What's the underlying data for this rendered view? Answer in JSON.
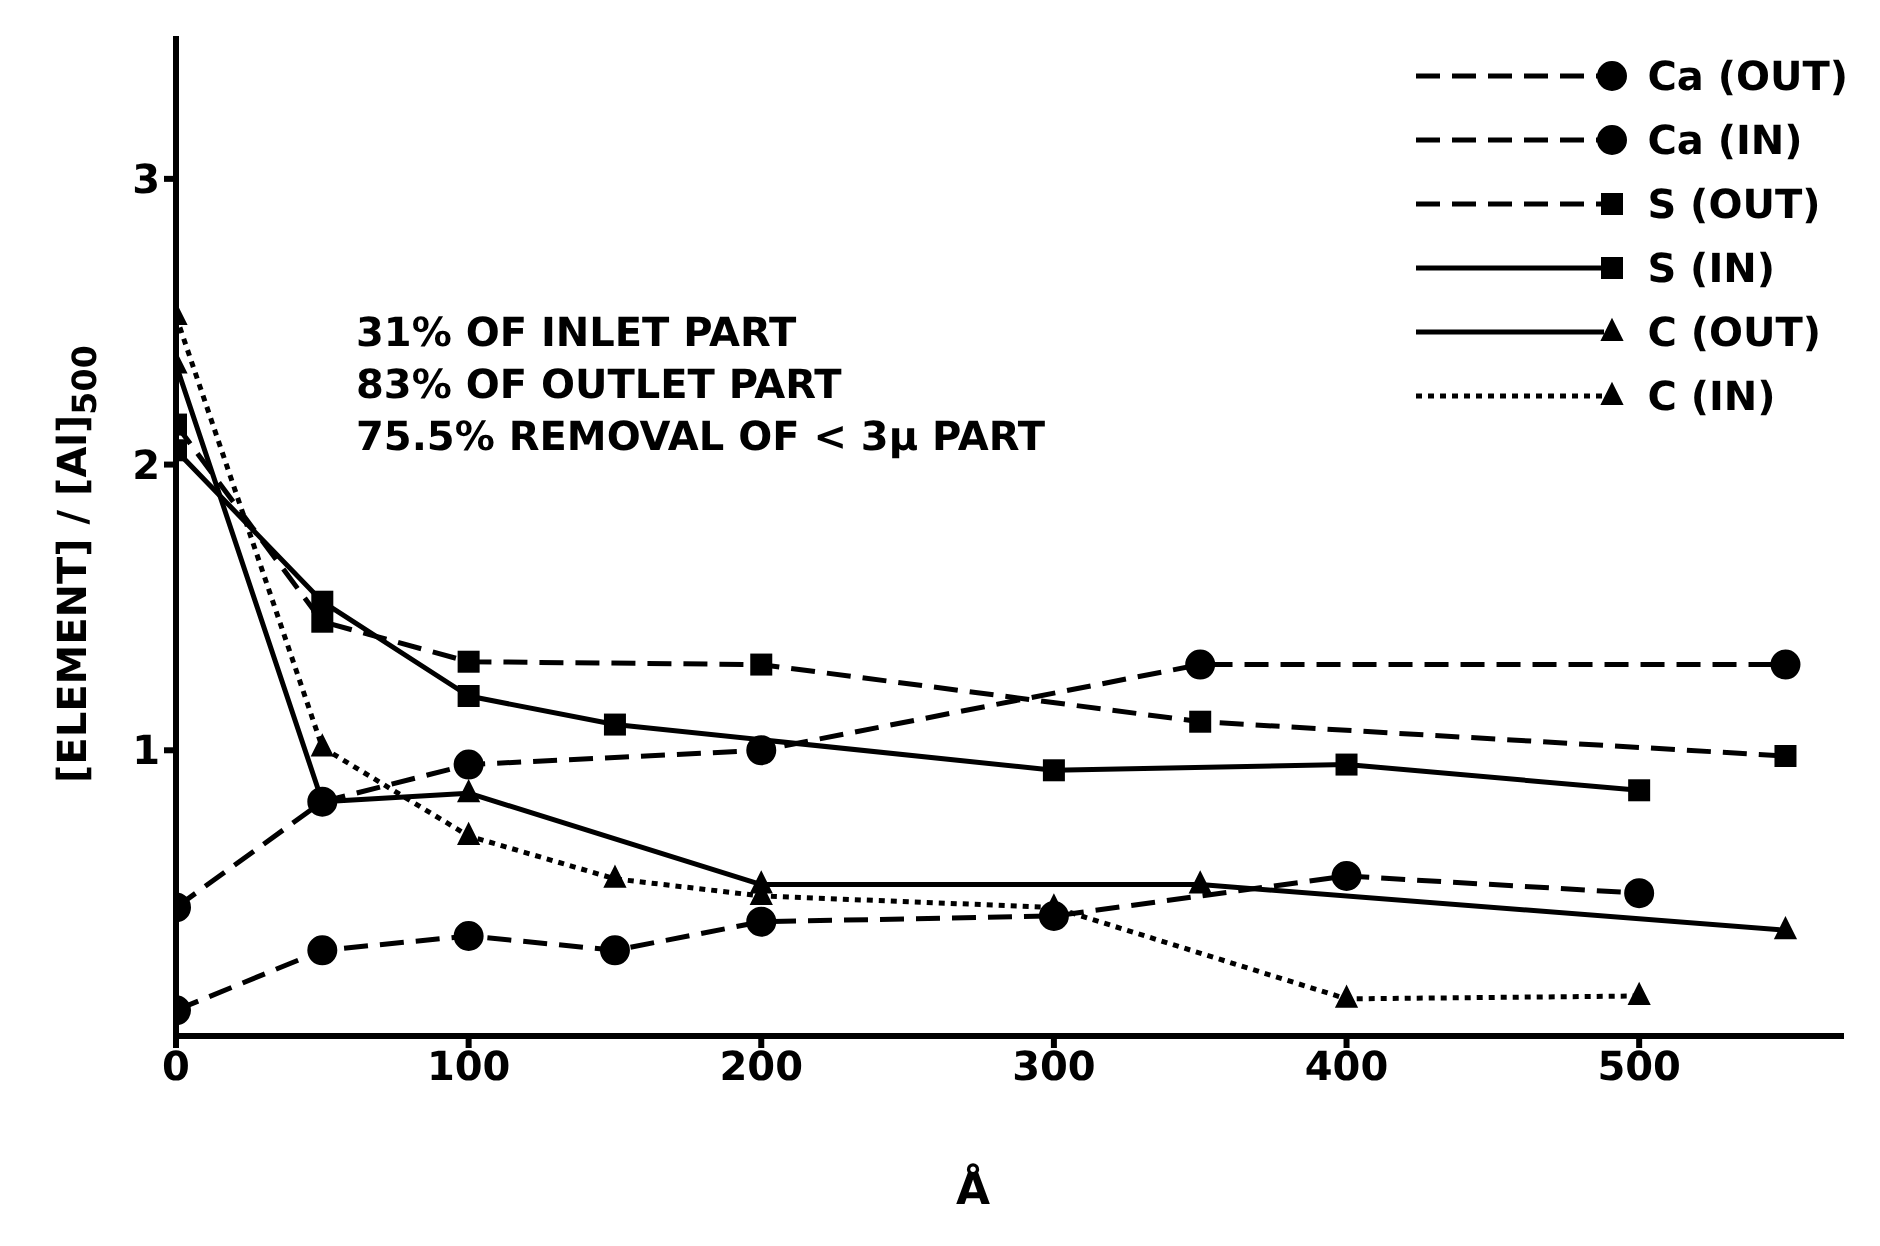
{
  "chart_data": {
    "type": "line",
    "xlabel": "Å",
    "ylabel": "[ELEMENT] / [Al]$_{500}$",
    "xlim": [
      0,
      570
    ],
    "xticks": [
      0,
      100,
      200,
      300,
      400,
      500
    ],
    "ylim": [
      0,
      3.5
    ],
    "yticks": [
      1,
      2,
      3
    ],
    "grid": false,
    "legend": "top right",
    "annotations": [
      "31% OF INLET PART",
      "83% OF OUTLET PART",
      "75.5% REMOVAL OF < 3μ PART"
    ],
    "series": [
      {
        "name": "Ca (OUT)",
        "color": "#000000",
        "marker": "circle",
        "line_style": "dashed",
        "x": [
          0,
          50,
          100,
          200,
          350,
          550
        ],
        "values": [
          0.45,
          0.82,
          0.95,
          1.0,
          1.3,
          1.3
        ]
      },
      {
        "name": "Ca (IN)",
        "color": "#000000",
        "marker": "circle",
        "line_style": "dashed",
        "x": [
          0,
          50,
          100,
          150,
          200,
          300,
          400,
          500
        ],
        "values": [
          0.09,
          0.3,
          0.35,
          0.3,
          0.4,
          0.42,
          0.56,
          0.5
        ]
      },
      {
        "name": "S (OUT)",
        "color": "#000000",
        "marker": "square",
        "line_style": "dashed",
        "x": [
          0,
          50,
          100,
          200,
          350,
          550
        ],
        "values": [
          2.14,
          1.45,
          1.31,
          1.3,
          1.1,
          0.98
        ]
      },
      {
        "name": "S (IN)",
        "color": "#000000",
        "marker": "square",
        "line_style": "solid",
        "x": [
          0,
          50,
          100,
          150,
          300,
          400,
          500
        ],
        "values": [
          2.05,
          1.52,
          1.19,
          1.09,
          0.93,
          0.95,
          0.86
        ]
      },
      {
        "name": "C (OUT)",
        "color": "#000000",
        "marker": "triangle",
        "line_style": "solid",
        "x": [
          0,
          50,
          100,
          200,
          350,
          550
        ],
        "values": [
          2.35,
          0.82,
          0.85,
          0.53,
          0.53,
          0.37
        ]
      },
      {
        "name": "C (IN)",
        "color": "#000000",
        "marker": "triangle",
        "line_style": "dotted",
        "x": [
          0,
          50,
          100,
          150,
          200,
          300,
          400,
          500
        ],
        "values": [
          2.52,
          1.01,
          0.7,
          0.55,
          0.49,
          0.45,
          0.13,
          0.14
        ]
      }
    ]
  }
}
